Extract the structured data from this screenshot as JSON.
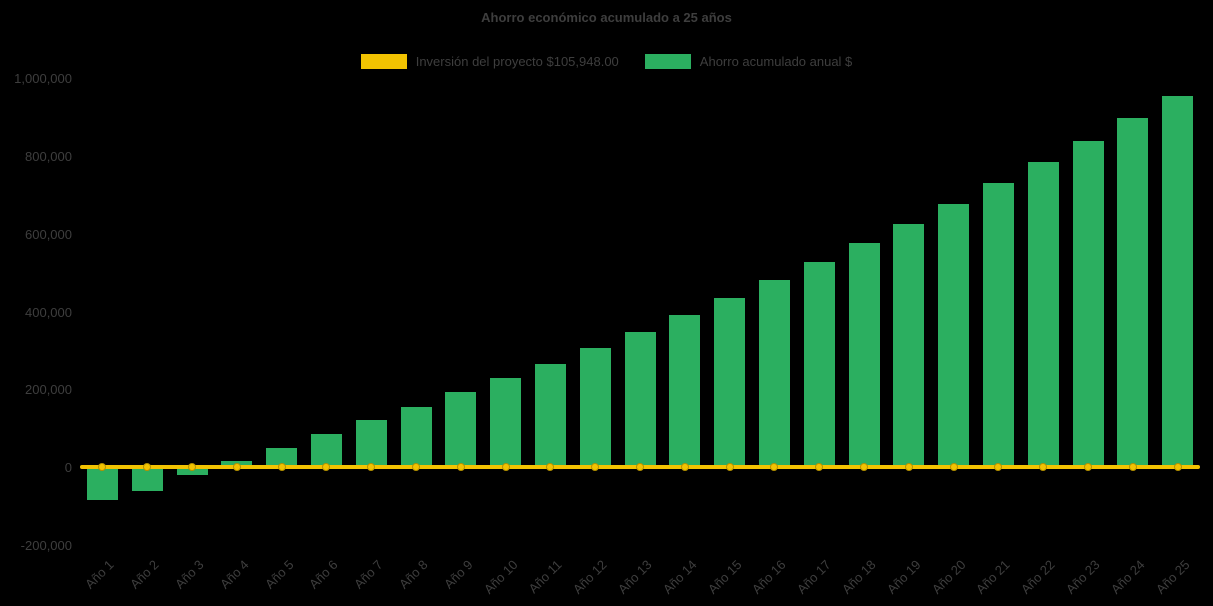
{
  "chart_data": {
    "type": "bar",
    "title": "Ahorro económico acumulado a 25 años",
    "categories": [
      "Año 1",
      "Año 2",
      "Año 3",
      "Año 4",
      "Año 5",
      "Año 6",
      "Año 7",
      "Año 8",
      "Año 9",
      "Año 10",
      "Año 11",
      "Año 12",
      "Año 13",
      "Año 14",
      "Año 15",
      "Año 16",
      "Año 17",
      "Año 18",
      "Año 19",
      "Año 20",
      "Año 21",
      "Año 22",
      "Año 23",
      "Año 24",
      "Año 25"
    ],
    "series": [
      {
        "name": "Inversión del proyecto $105,948.00",
        "type": "line",
        "color": "#F2C301",
        "values": [
          0,
          0,
          0,
          0,
          0,
          0,
          0,
          0,
          0,
          0,
          0,
          0,
          0,
          0,
          0,
          0,
          0,
          0,
          0,
          0,
          0,
          0,
          0,
          0,
          0
        ]
      },
      {
        "name": "Ahorro acumulado anual $",
        "type": "bar",
        "color": "#2BAF60",
        "values": [
          -85000,
          -60000,
          -20000,
          15000,
          50000,
          85000,
          120000,
          155000,
          192000,
          228000,
          266000,
          306000,
          347000,
          390000,
          434000,
          480000,
          527000,
          576000,
          626000,
          677000,
          729000,
          783000,
          839000,
          896000,
          953000
        ]
      }
    ],
    "ylim": [
      -200000,
      1000000
    ],
    "yticks": [
      {
        "value": 1000000,
        "label": "1,000,000"
      },
      {
        "value": 800000,
        "label": "800,000"
      },
      {
        "value": 600000,
        "label": "600,000"
      },
      {
        "value": 400000,
        "label": "400,000"
      },
      {
        "value": 200000,
        "label": "200,000"
      },
      {
        "value": 0,
        "label": "0"
      },
      {
        "value": -200000,
        "label": "-200,000"
      }
    ],
    "xlabel": "",
    "ylabel": "",
    "grid": false,
    "legend_position": "top",
    "background_color": "#000000",
    "text_color": "#3E3E3E"
  }
}
